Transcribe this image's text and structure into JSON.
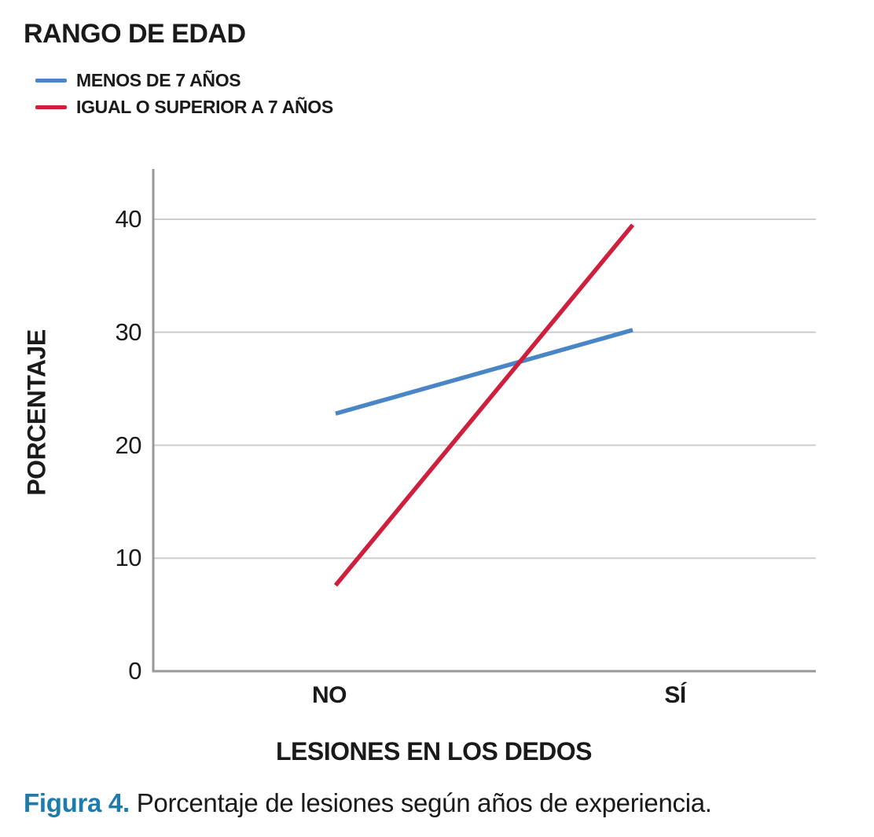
{
  "legend": {
    "title": "RANGO DE EDAD",
    "items": [
      {
        "label": "MENOS DE 7 AÑOS",
        "color": "#4a86c6",
        "swatch": "blue-line-swatch"
      },
      {
        "label": "IGUAL O SUPERIOR A 7 AÑOS",
        "color": "#ce203c",
        "swatch": "red-line-swatch"
      }
    ]
  },
  "chart_data": {
    "type": "line",
    "title": "",
    "categories": [
      "NO",
      "SÍ"
    ],
    "series": [
      {
        "name": "MENOS DE 7 AÑOS",
        "color": "#4a86c6",
        "values": [
          22.8,
          30.2
        ]
      },
      {
        "name": "IGUAL O SUPERIOR A 7 AÑOS",
        "color": "#ce203c",
        "values": [
          7.6,
          39.5
        ]
      }
    ],
    "xlabel": "LESIONES EN LOS DEDOS",
    "ylabel": "PORCENTAJE",
    "ylim": [
      0,
      44.5
    ],
    "yticks": [
      0,
      10,
      20,
      30,
      40
    ],
    "grid": "horizontal",
    "legend_position": "top-left",
    "gridline_color": "#cdcdcd",
    "axis_color": "#999999"
  },
  "caption": {
    "label": "Figura 4.",
    "label_color": "#1d7cab",
    "text": "Porcentaje de lesiones según años de experiencia."
  }
}
